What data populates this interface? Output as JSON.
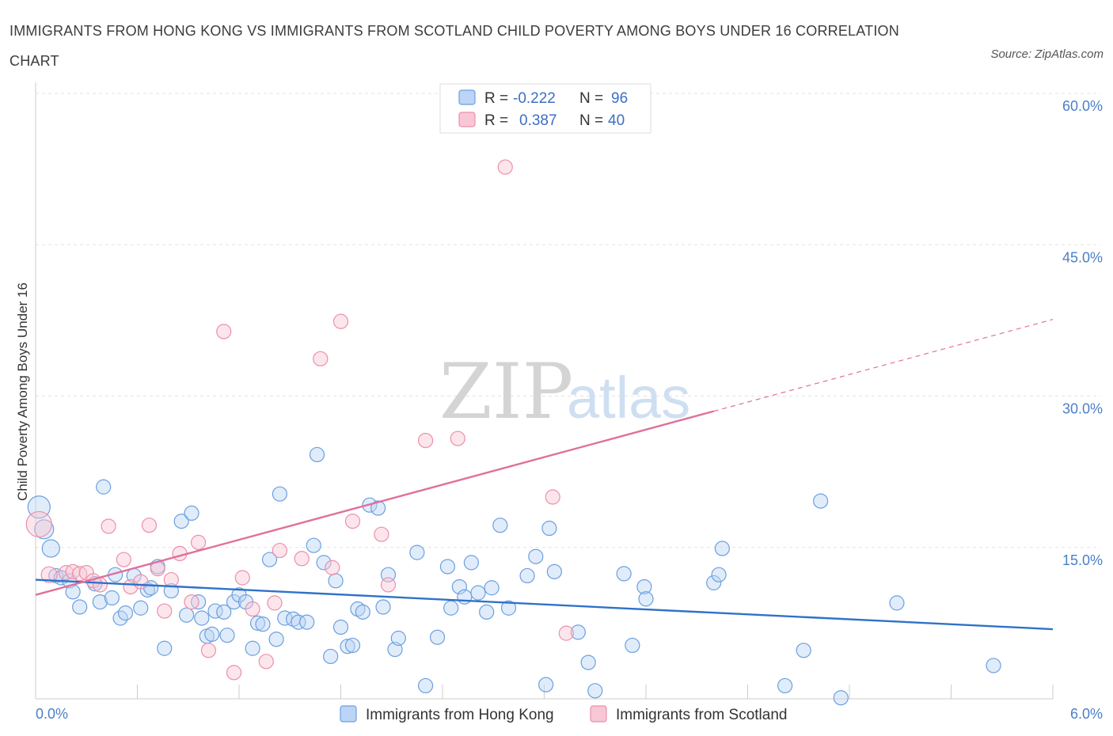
{
  "title": "IMMIGRANTS FROM HONG KONG VS IMMIGRANTS FROM SCOTLAND CHILD POVERTY AMONG BOYS UNDER 16 CORRELATION CHART",
  "source": "Source: ZipAtlas.com",
  "watermark": {
    "zip": "ZIP",
    "atlas": "atlas"
  },
  "legend": {
    "r_label": "R =",
    "n_label": "N =",
    "rows": [
      {
        "r": "-0.222",
        "n": "96",
        "color": "#6aa0e0",
        "fill": "#bcd4f5"
      },
      {
        "r": "0.387",
        "n": "40",
        "color": "#ec8fac",
        "fill": "#f8c7d5"
      }
    ]
  },
  "bottom_legend": [
    "Immigrants from Hong Kong",
    "Immigrants from Scotland"
  ],
  "chart_data": {
    "type": "scatter",
    "title": "IMMIGRANTS FROM HONG KONG VS IMMIGRANTS FROM SCOTLAND CHILD POVERTY AMONG BOYS UNDER 16 CORRELATION CHART",
    "xlabel": "",
    "ylabel": "Child Poverty Among Boys Under 16",
    "xlim": [
      0,
      6
    ],
    "ylim": [
      0,
      60
    ],
    "x_ticks": [
      "0.0%",
      "6.0%"
    ],
    "y_ticks": [
      {
        "value": 15,
        "label": "15.0%"
      },
      {
        "value": 30,
        "label": "30.0%"
      },
      {
        "value": 45,
        "label": "45.0%"
      },
      {
        "value": 60,
        "label": "60.0%"
      }
    ],
    "grid": true,
    "legend_position": "top-center",
    "series": [
      {
        "name": "Immigrants from Hong Kong",
        "color": "#6aa0e0",
        "fill": "#bcd4f5",
        "trend": {
          "x": [
            0,
            6
          ],
          "y": [
            11.8,
            6.9
          ],
          "solid_to": 6
        },
        "points": [
          [
            0.02,
            19.0,
            14
          ],
          [
            0.05,
            16.8,
            12
          ],
          [
            0.09,
            14.9,
            11
          ],
          [
            0.12,
            12.2,
            9
          ],
          [
            0.15,
            12.0,
            9
          ],
          [
            0.2,
            11.7,
            9
          ],
          [
            0.22,
            10.6,
            9
          ],
          [
            0.26,
            9.1,
            9
          ],
          [
            0.35,
            11.4,
            9
          ],
          [
            0.38,
            9.6,
            9
          ],
          [
            0.4,
            21.0,
            9
          ],
          [
            0.45,
            10.0,
            9
          ],
          [
            0.47,
            12.3,
            9
          ],
          [
            0.5,
            8.0,
            9
          ],
          [
            0.53,
            8.5,
            9
          ],
          [
            0.58,
            12.2,
            9
          ],
          [
            0.62,
            9.0,
            9
          ],
          [
            0.66,
            10.8,
            9
          ],
          [
            0.68,
            11.0,
            9
          ],
          [
            0.72,
            13.1,
            9
          ],
          [
            0.76,
            5.0,
            9
          ],
          [
            0.8,
            10.7,
            9
          ],
          [
            0.86,
            17.6,
            9
          ],
          [
            0.89,
            8.3,
            9
          ],
          [
            0.92,
            18.4,
            9
          ],
          [
            0.96,
            9.6,
            9
          ],
          [
            0.98,
            8.0,
            9
          ],
          [
            1.01,
            6.2,
            9
          ],
          [
            1.04,
            6.4,
            9
          ],
          [
            1.06,
            8.7,
            9
          ],
          [
            1.11,
            8.6,
            9
          ],
          [
            1.13,
            6.3,
            9
          ],
          [
            1.17,
            9.6,
            9
          ],
          [
            1.2,
            10.3,
            9
          ],
          [
            1.24,
            9.6,
            9
          ],
          [
            1.28,
            5.0,
            9
          ],
          [
            1.31,
            7.5,
            9
          ],
          [
            1.34,
            7.4,
            9
          ],
          [
            1.38,
            13.8,
            9
          ],
          [
            1.42,
            5.9,
            9
          ],
          [
            1.44,
            20.3,
            9
          ],
          [
            1.47,
            8.0,
            9
          ],
          [
            1.52,
            7.9,
            9
          ],
          [
            1.55,
            7.6,
            9
          ],
          [
            1.6,
            7.6,
            9
          ],
          [
            1.64,
            15.2,
            9
          ],
          [
            1.66,
            24.2,
            9
          ],
          [
            1.7,
            13.5,
            9
          ],
          [
            1.74,
            4.2,
            9
          ],
          [
            1.77,
            11.7,
            9
          ],
          [
            1.8,
            7.1,
            9
          ],
          [
            1.84,
            5.2,
            9
          ],
          [
            1.87,
            5.3,
            9
          ],
          [
            1.9,
            8.9,
            9
          ],
          [
            1.93,
            8.6,
            9
          ],
          [
            1.97,
            19.2,
            9
          ],
          [
            2.02,
            18.9,
            9
          ],
          [
            2.05,
            9.1,
            9
          ],
          [
            2.08,
            12.3,
            9
          ],
          [
            2.12,
            4.9,
            9
          ],
          [
            2.14,
            6.0,
            9
          ],
          [
            2.25,
            14.5,
            9
          ],
          [
            2.3,
            1.3,
            9
          ],
          [
            2.37,
            6.1,
            9
          ],
          [
            2.43,
            13.1,
            9
          ],
          [
            2.45,
            9.0,
            9
          ],
          [
            2.5,
            11.1,
            9
          ],
          [
            2.53,
            10.1,
            9
          ],
          [
            2.57,
            13.5,
            9
          ],
          [
            2.61,
            10.5,
            9
          ],
          [
            2.66,
            8.6,
            9
          ],
          [
            2.69,
            11.0,
            9
          ],
          [
            2.74,
            17.2,
            9
          ],
          [
            2.79,
            9.0,
            9
          ],
          [
            2.9,
            12.2,
            9
          ],
          [
            2.95,
            14.1,
            9
          ],
          [
            3.01,
            1.4,
            9
          ],
          [
            3.03,
            16.9,
            9
          ],
          [
            3.06,
            12.6,
            9
          ],
          [
            3.2,
            6.6,
            9
          ],
          [
            3.26,
            3.6,
            9
          ],
          [
            3.3,
            0.8,
            9
          ],
          [
            3.47,
            12.4,
            9
          ],
          [
            3.52,
            5.3,
            9
          ],
          [
            3.59,
            11.1,
            9
          ],
          [
            3.6,
            9.9,
            9
          ],
          [
            4.0,
            11.5,
            9
          ],
          [
            4.03,
            12.3,
            9
          ],
          [
            4.05,
            14.9,
            9
          ],
          [
            4.42,
            1.3,
            9
          ],
          [
            4.53,
            4.8,
            9
          ],
          [
            4.63,
            19.6,
            9
          ],
          [
            4.75,
            0.1,
            9
          ],
          [
            5.08,
            9.5,
            9
          ],
          [
            5.65,
            3.3,
            9
          ]
        ]
      },
      {
        "name": "Immigrants from Scotland",
        "color": "#ec8fac",
        "fill": "#f8c7d5",
        "trend": {
          "x": [
            0,
            6
          ],
          "y": [
            10.3,
            37.6
          ],
          "solid_to": 4.0
        },
        "points": [
          [
            0.02,
            17.3,
            16
          ],
          [
            0.08,
            12.3,
            10
          ],
          [
            0.18,
            12.5,
            9
          ],
          [
            0.22,
            12.6,
            9
          ],
          [
            0.26,
            12.4,
            9
          ],
          [
            0.3,
            12.5,
            9
          ],
          [
            0.34,
            11.7,
            9
          ],
          [
            0.38,
            11.3,
            9
          ],
          [
            0.43,
            17.1,
            9
          ],
          [
            0.52,
            13.8,
            9
          ],
          [
            0.56,
            11.1,
            9
          ],
          [
            0.62,
            11.6,
            9
          ],
          [
            0.67,
            17.2,
            9
          ],
          [
            0.72,
            12.9,
            9
          ],
          [
            0.76,
            8.7,
            9
          ],
          [
            0.8,
            11.8,
            9
          ],
          [
            0.85,
            14.4,
            9
          ],
          [
            0.92,
            9.6,
            9
          ],
          [
            0.96,
            15.5,
            9
          ],
          [
            1.02,
            4.8,
            9
          ],
          [
            1.11,
            36.4,
            9
          ],
          [
            1.17,
            2.6,
            9
          ],
          [
            1.22,
            12.0,
            9
          ],
          [
            1.28,
            8.9,
            9
          ],
          [
            1.36,
            3.7,
            9
          ],
          [
            1.41,
            9.5,
            9
          ],
          [
            1.44,
            14.7,
            9
          ],
          [
            1.57,
            13.9,
            9
          ],
          [
            1.68,
            33.7,
            9
          ],
          [
            1.75,
            13.0,
            9
          ],
          [
            1.8,
            37.4,
            9
          ],
          [
            1.87,
            17.6,
            9
          ],
          [
            2.04,
            16.3,
            9
          ],
          [
            2.08,
            11.3,
            9
          ],
          [
            2.3,
            25.6,
            9
          ],
          [
            2.49,
            25.8,
            9
          ],
          [
            2.77,
            52.7,
            9
          ],
          [
            3.05,
            20.0,
            9
          ],
          [
            3.13,
            6.5,
            9
          ]
        ]
      }
    ]
  }
}
